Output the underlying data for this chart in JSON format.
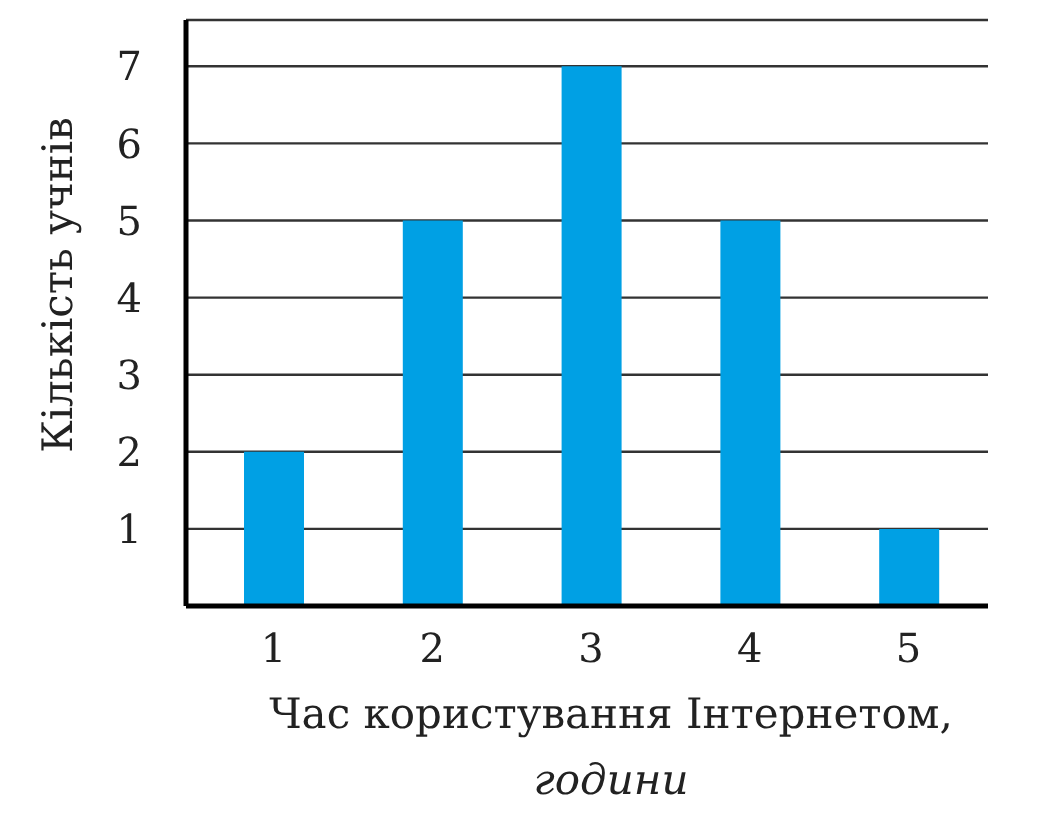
{
  "chart_data": {
    "type": "bar",
    "xlabel": "Час користування Інтернетом, години",
    "ylabel": "Кількість учнів",
    "categories": [
      "1",
      "2",
      "3",
      "4",
      "5"
    ],
    "values": [
      2,
      5,
      7,
      5,
      1
    ],
    "color": "#00a0e4",
    "ylim": [
      0,
      7.6
    ],
    "yticks": [
      1,
      2,
      3,
      4,
      5,
      6,
      7
    ],
    "grid": "y"
  }
}
